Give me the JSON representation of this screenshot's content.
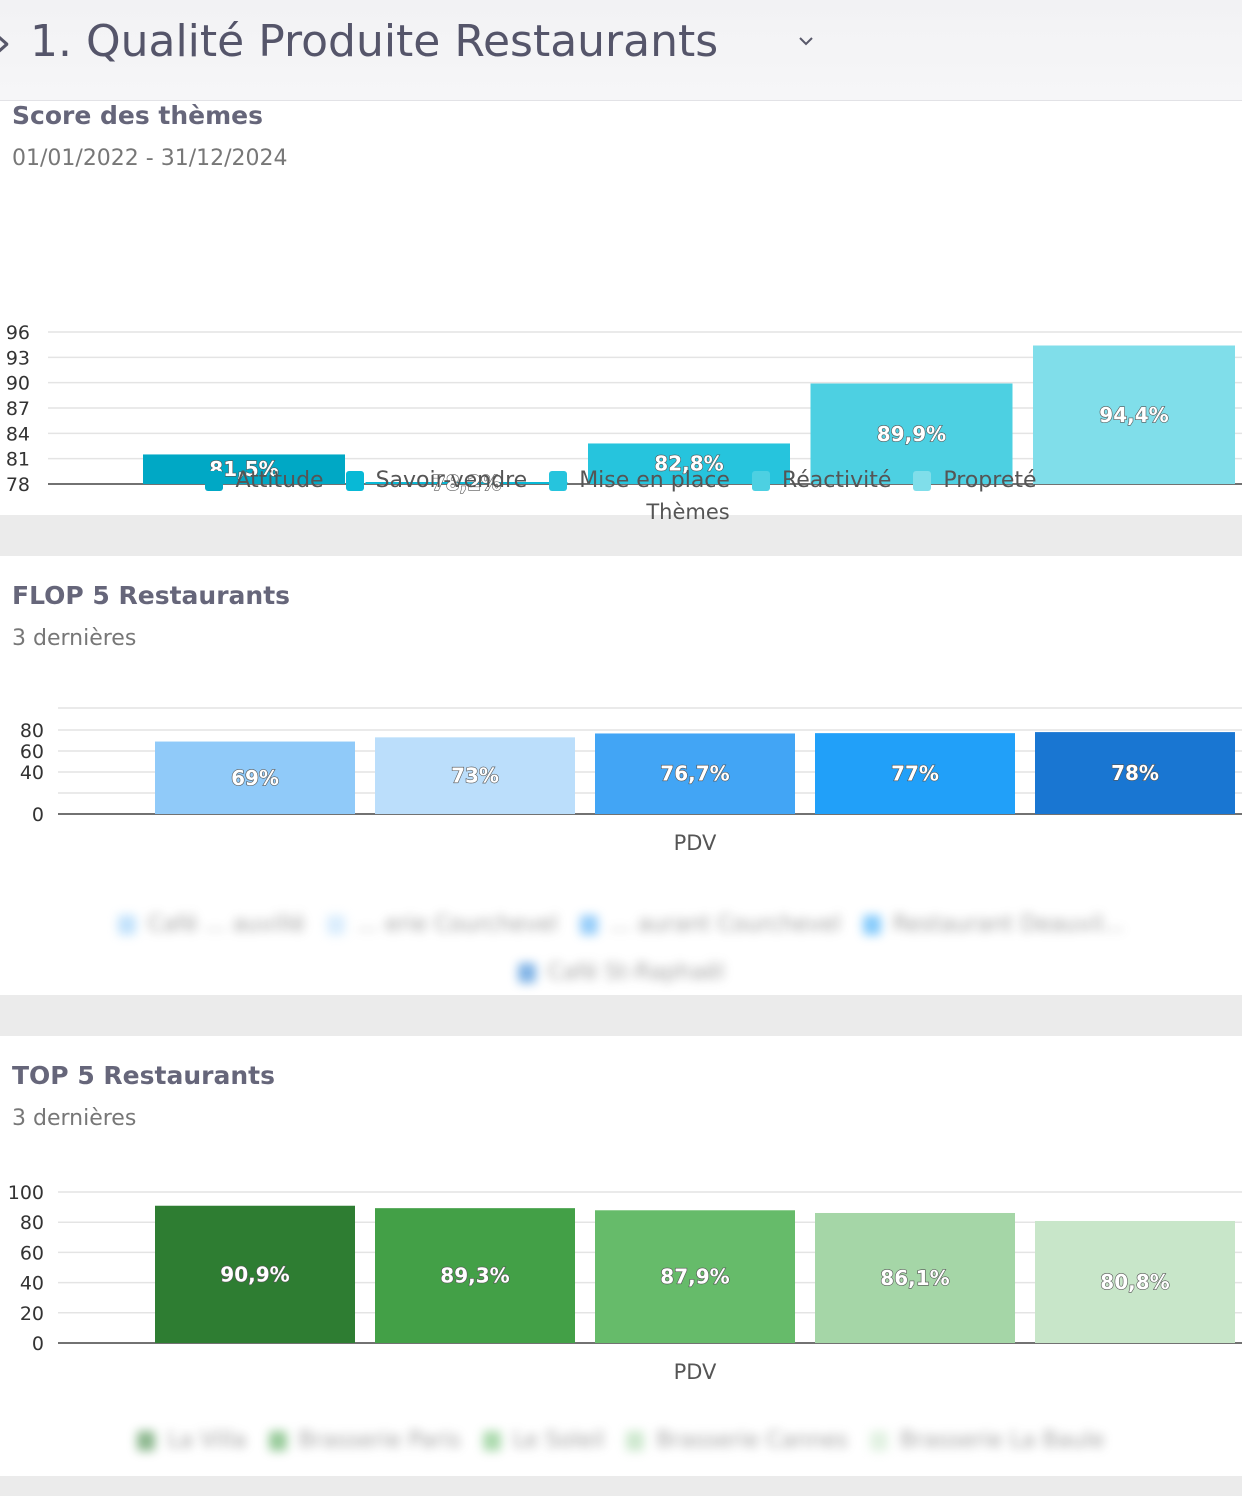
{
  "header": {
    "title": "1. Qualité Produite Restaurants"
  },
  "themes": {
    "title": "Score des thèmes",
    "date_range": "01/01/2022 - 31/12/2024"
  },
  "flop": {
    "title": "FLOP 5 Restaurants",
    "subtitle": "3 dernières"
  },
  "top": {
    "title": "TOP 5 Restaurants",
    "subtitle": "3 dernières"
  },
  "chart_data": [
    {
      "type": "bar",
      "title": "Score des thèmes",
      "subtitle": "01/01/2022 - 31/12/2024",
      "xlabel": "Thèmes",
      "ylabel": "",
      "y_ticks": [
        78,
        81,
        84,
        87,
        90,
        93,
        96
      ],
      "ylim": [
        78,
        96
      ],
      "grid": true,
      "legend_position": "bottom",
      "series": [
        {
          "name": "Attitude",
          "value": 81.5,
          "label": "81,5%",
          "color": "#00a8c5"
        },
        {
          "name": "Savoir-vendre",
          "value": 78.2,
          "label": "78,2%",
          "color": "#08b9d6"
        },
        {
          "name": "Mise en place",
          "value": 82.8,
          "label": "82,8%",
          "color": "#26c4dd"
        },
        {
          "name": "Réactivité",
          "value": 89.9,
          "label": "89,9%",
          "color": "#4dd0e2"
        },
        {
          "name": "Propreté",
          "value": 94.4,
          "label": "94,4%",
          "color": "#80deea"
        }
      ]
    },
    {
      "type": "bar",
      "title": "FLOP 5 Restaurants",
      "subtitle": "3 dernières",
      "xlabel": "PDV",
      "ylabel": "",
      "y_ticks": [
        0,
        40,
        60,
        80
      ],
      "ylim": [
        0,
        80
      ],
      "grid": true,
      "legend_position": "bottom",
      "series": [
        {
          "name": "Café ... auvillé",
          "value": 69,
          "label": "69%",
          "color": "#90caf9"
        },
        {
          "name": "... erie Courchevel",
          "value": 73,
          "label": "73%",
          "color": "#bbdefb"
        },
        {
          "name": "... aurant Courchevel",
          "value": 76.7,
          "label": "76,7%",
          "color": "#42a5f5"
        },
        {
          "name": "Restaurant Deauvil...",
          "value": 77,
          "label": "77%",
          "color": "#21a0f9"
        },
        {
          "name": "Café St-Raphaël",
          "value": 78,
          "label": "78%",
          "color": "#1976d2"
        }
      ]
    },
    {
      "type": "bar",
      "title": "TOP 5 Restaurants",
      "subtitle": "3 dernières",
      "xlabel": "PDV",
      "ylabel": "",
      "y_ticks": [
        0,
        20,
        40,
        60,
        80,
        100
      ],
      "ylim": [
        0,
        100
      ],
      "grid": true,
      "legend_position": "bottom",
      "series": [
        {
          "name": "La Villa",
          "value": 90.9,
          "label": "90,9%",
          "color": "#2e7d32"
        },
        {
          "name": "Brasserie Paris",
          "value": 89.3,
          "label": "89,3%",
          "color": "#43a047"
        },
        {
          "name": "Le Soleil",
          "value": 87.9,
          "label": "87,9%",
          "color": "#66bb6a"
        },
        {
          "name": "Brasserie Cannes",
          "value": 86.1,
          "label": "86,1%",
          "color": "#a5d6a7"
        },
        {
          "name": "Brasserie La Baule",
          "value": 80.8,
          "label": "80,8%",
          "color": "#c8e6c9"
        }
      ]
    }
  ]
}
